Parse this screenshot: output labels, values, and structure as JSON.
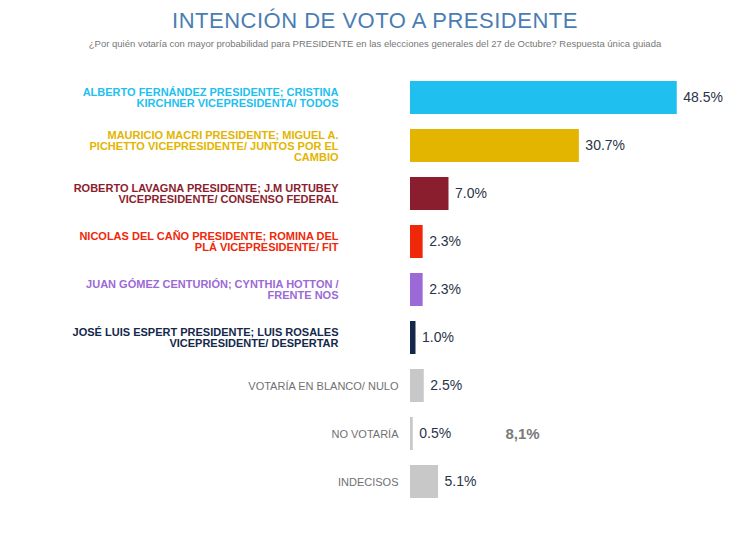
{
  "chart_data": {
    "type": "bar",
    "orientation": "horizontal",
    "title": "INTENCIÓN DE VOTO A PRESIDENTE",
    "subtitle": "¿Por quién votaría con mayor probabilidad para PRESIDENTE en las elecciones generales del 27 de Octubre? Respuesta única guiada",
    "categories": [
      "ALBERTO FERNÁNDEZ PRESIDENTE; CRISTINA KIRCHNER VICEPRESIDENTA/ TODOS",
      "MAURICIO MACRI PRESIDENTE; MIGUEL A. PICHETTO VICEPRESIDENTE/ JUNTOS POR EL CAMBIO",
      "ROBERTO LAVAGNA PRESIDENTE; J.M URTUBEY VICEPRESIDENTE/ CONSENSO FEDERAL",
      "NICOLAS DEL CAÑO PRESIDENTE; ROMINA DEL PLÁ VICEPRESIDENTE/ FIT",
      "JUAN GÓMEZ CENTURIÓN; CYNTHIA HOTTON / FRENTE NOS",
      "JOSÉ LUIS ESPERT PRESIDENTE; LUIS ROSALES VICEPRESIDENTE/ DESPERTAR",
      "VOTARÍA EN BLANCO/ NULO",
      "NO VOTARÍA",
      "INDECISOS"
    ],
    "values": [
      48.5,
      30.7,
      7.0,
      2.3,
      2.3,
      1.0,
      2.5,
      0.5,
      5.1
    ],
    "value_labels": [
      "48.5%",
      "30.7%",
      "7.0%",
      "2.3%",
      "2.3%",
      "1.0%",
      "2.5%",
      "0.5%",
      "5.1%"
    ],
    "colors": [
      "#1fbff0",
      "#e3b500",
      "#8b1e2e",
      "#f0280a",
      "#9b6ad6",
      "#14284a",
      "#c8c8c8",
      "#c8c8c8",
      "#c8c8c8"
    ],
    "data_labels": true,
    "tick_labels": false,
    "grid": false,
    "xlim": [
      0,
      50
    ],
    "bracket_total": {
      "value": 8.1,
      "label": "8,1%"
    }
  }
}
